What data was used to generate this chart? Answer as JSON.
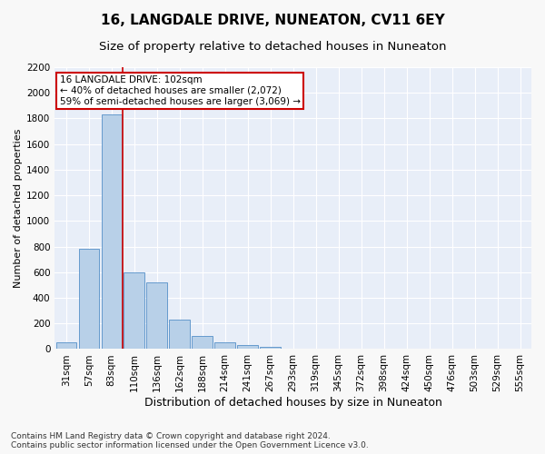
{
  "title": "16, LANGDALE DRIVE, NUNEATON, CV11 6EY",
  "subtitle": "Size of property relative to detached houses in Nuneaton",
  "xlabel": "Distribution of detached houses by size in Nuneaton",
  "ylabel": "Number of detached properties",
  "categories": [
    "31sqm",
    "57sqm",
    "83sqm",
    "110sqm",
    "136sqm",
    "162sqm",
    "188sqm",
    "214sqm",
    "241sqm",
    "267sqm",
    "293sqm",
    "319sqm",
    "345sqm",
    "372sqm",
    "398sqm",
    "424sqm",
    "450sqm",
    "476sqm",
    "503sqm",
    "529sqm",
    "555sqm"
  ],
  "values": [
    50,
    780,
    1830,
    600,
    520,
    230,
    105,
    50,
    30,
    15,
    5,
    0,
    0,
    0,
    0,
    0,
    0,
    0,
    0,
    0,
    0
  ],
  "bar_color": "#b8d0e8",
  "bar_edge_color": "#5590c8",
  "vline_color": "#cc0000",
  "vline_xindex": 2.5,
  "annotation_text": "16 LANGDALE DRIVE: 102sqm\n← 40% of detached houses are smaller (2,072)\n59% of semi-detached houses are larger (3,069) →",
  "annotation_box_facecolor": "#ffffff",
  "annotation_box_edgecolor": "#cc0000",
  "ylim": [
    0,
    2200
  ],
  "yticks": [
    0,
    200,
    400,
    600,
    800,
    1000,
    1200,
    1400,
    1600,
    1800,
    2000,
    2200
  ],
  "fig_background": "#f8f8f8",
  "plot_background": "#e8eef8",
  "grid_color": "#ffffff",
  "title_fontsize": 11,
  "subtitle_fontsize": 9.5,
  "xlabel_fontsize": 9,
  "ylabel_fontsize": 8,
  "tick_fontsize": 7.5,
  "annotation_fontsize": 7.5,
  "footer_fontsize": 6.5,
  "footer": "Contains HM Land Registry data © Crown copyright and database right 2024.\nContains public sector information licensed under the Open Government Licence v3.0."
}
